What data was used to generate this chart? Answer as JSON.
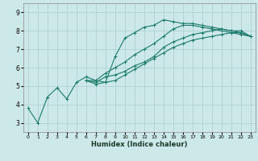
{
  "xlabel": "Humidex (Indice chaleur)",
  "xlim": [
    -0.5,
    23.5
  ],
  "ylim": [
    2.5,
    9.5
  ],
  "xticks": [
    0,
    1,
    2,
    3,
    4,
    5,
    6,
    7,
    8,
    9,
    10,
    11,
    12,
    13,
    14,
    15,
    16,
    17,
    18,
    19,
    20,
    21,
    22,
    23
  ],
  "yticks": [
    3,
    4,
    5,
    6,
    7,
    8,
    9
  ],
  "bg_color": "#cce8e8",
  "line_color": "#1a7a6a",
  "grid_color": "#aacece",
  "lines": [
    {
      "x": [
        0,
        1,
        2,
        3,
        4,
        5,
        6,
        7,
        8,
        9,
        10,
        11,
        12,
        13,
        14,
        15,
        16,
        17,
        18,
        19,
        20,
        21,
        22,
        23
      ],
      "y": [
        3.8,
        3.0,
        4.4,
        4.9,
        4.3,
        5.2,
        5.5,
        5.3,
        5.2,
        6.6,
        7.6,
        7.9,
        8.2,
        8.3,
        8.6,
        8.5,
        8.4,
        8.4,
        8.3,
        8.2,
        8.1,
        8.0,
        8.0,
        7.7
      ]
    },
    {
      "x": [
        6,
        7,
        8,
        9,
        10,
        11,
        12,
        13,
        14,
        15,
        16,
        17,
        18,
        19,
        20,
        21,
        22,
        23
      ],
      "y": [
        5.3,
        5.1,
        5.2,
        5.3,
        5.6,
        5.9,
        6.2,
        6.5,
        6.8,
        7.1,
        7.3,
        7.5,
        7.6,
        7.7,
        7.8,
        7.9,
        7.9,
        7.7
      ]
    },
    {
      "x": [
        6,
        7,
        8,
        9,
        10,
        11,
        12,
        13,
        14,
        15,
        16,
        17,
        18,
        19,
        20,
        21,
        22,
        23
      ],
      "y": [
        5.3,
        5.2,
        5.5,
        5.6,
        5.8,
        6.1,
        6.3,
        6.6,
        7.1,
        7.4,
        7.6,
        7.8,
        7.9,
        8.0,
        8.1,
        8.0,
        7.9,
        7.7
      ]
    },
    {
      "x": [
        6,
        7,
        8,
        9,
        10,
        11,
        12,
        13,
        14,
        15,
        16,
        17,
        18,
        19,
        20,
        21,
        22,
        23
      ],
      "y": [
        5.3,
        5.3,
        5.7,
        6.0,
        6.3,
        6.7,
        7.0,
        7.3,
        7.7,
        8.1,
        8.3,
        8.3,
        8.2,
        8.1,
        8.0,
        7.9,
        7.8,
        7.7
      ]
    }
  ]
}
